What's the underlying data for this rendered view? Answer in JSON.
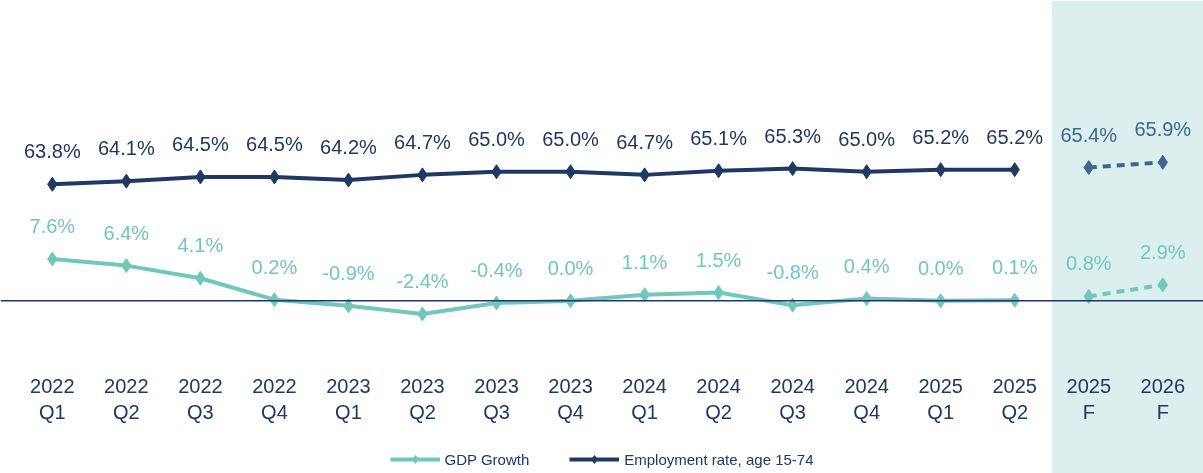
{
  "chart_data": {
    "type": "line",
    "categories": [
      "2022\nQ1",
      "2022\nQ2",
      "2022\nQ3",
      "2022\nQ4",
      "2023\nQ1",
      "2023\nQ2",
      "2023\nQ3",
      "2023\nQ4",
      "2024\nQ1",
      "2024\nQ2",
      "2024\nQ3",
      "2024\nQ4",
      "2025\nQ1",
      "2025\nQ2",
      "2025\nF",
      "2026\nF"
    ],
    "series": [
      {
        "name": "GDP Growth",
        "color": "#72c7bb",
        "line_style": "solid",
        "values": [
          7.6,
          6.4,
          4.1,
          0.2,
          -0.9,
          -2.4,
          -0.4,
          0.0,
          1.1,
          1.5,
          -0.8,
          0.4,
          0.0,
          0.1,
          null,
          null
        ],
        "value_labels": [
          "7.6%",
          "6.4%",
          "4.1%",
          "0.2%",
          "-0.9%",
          "-2.4%",
          "-0.4%",
          "0.0%",
          "1.1%",
          "1.5%",
          "-0.8%",
          "0.4%",
          "0.0%",
          "0.1%",
          null,
          null
        ]
      },
      {
        "color": "#72c7bb",
        "line_style": "dashed",
        "values": [
          null,
          null,
          null,
          null,
          null,
          null,
          null,
          null,
          null,
          null,
          null,
          null,
          null,
          null,
          0.8,
          2.9
        ],
        "value_labels": [
          null,
          null,
          null,
          null,
          null,
          null,
          null,
          null,
          null,
          null,
          null,
          null,
          null,
          null,
          "0.8%",
          "2.9%"
        ]
      },
      {
        "name": "Employment rate, age 15-74",
        "color": "#1f3864",
        "axis": "y2",
        "line_style": "solid",
        "values": [
          63.8,
          64.1,
          64.5,
          64.5,
          64.2,
          64.7,
          65.0,
          65.0,
          64.7,
          65.1,
          65.3,
          65.0,
          65.2,
          65.2,
          null,
          null
        ],
        "value_labels": [
          "63.8%",
          "64.1%",
          "64.5%",
          "64.5%",
          "64.2%",
          "64.7%",
          "65.0%",
          "65.0%",
          "64.7%",
          "65.1%",
          "65.3%",
          "65.0%",
          "65.2%",
          "65.2%",
          null,
          null
        ]
      },
      {
        "color": "#3d6690",
        "axis": "y2",
        "line_style": "dashed",
        "values": [
          null,
          null,
          null,
          null,
          null,
          null,
          null,
          null,
          null,
          null,
          null,
          null,
          null,
          null,
          65.4,
          65.9
        ],
        "value_labels": [
          null,
          null,
          null,
          null,
          null,
          null,
          null,
          null,
          null,
          null,
          null,
          null,
          null,
          null,
          "65.4%",
          "65.9%"
        ]
      }
    ],
    "ylim": [
      -31.4,
      54.6
    ],
    "y2lim": [
      36.1,
      81.4
    ],
    "ref_lines": [
      {
        "axis": "y",
        "value": 0,
        "color": "#1f3864"
      }
    ],
    "bands": [
      {
        "axis": "x",
        "from": "2025\nF",
        "to": "2026\nF",
        "color": "#dcefef"
      }
    ],
    "marker": "diamond",
    "legend": "bottom",
    "grid": false,
    "tick_labels": "x"
  }
}
